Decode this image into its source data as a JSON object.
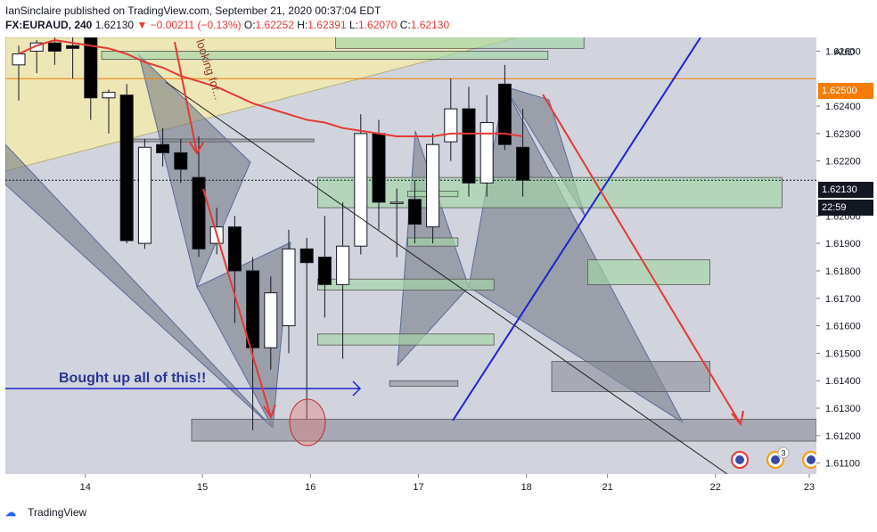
{
  "header": {
    "published": "IanSinclaire published on TradingView.com, September 21, 2020 00:37:04 EDT",
    "symbol": "FX:EURAUD, 240",
    "last": "1.62130",
    "arrow": "▼",
    "change": "−0.00211 (−0.13%)",
    "o_label": "O:",
    "o": "1.62252",
    "h_label": "H:",
    "h": "1.62391",
    "l_label": "L:",
    "l": "1.62070",
    "c_label": "C:",
    "c": "1.62130"
  },
  "axis": {
    "currency": "AUD",
    "price_ticks": [
      "1.62600",
      "1.62400",
      "1.62300",
      "1.62200",
      "1.62000",
      "1.61900",
      "1.61800",
      "1.61700",
      "1.61600",
      "1.61500",
      "1.61400",
      "1.61300",
      "1.61200",
      "1.61100"
    ],
    "date_ticks": [
      "14",
      "15",
      "16",
      "17",
      "18",
      "21",
      "22",
      "23"
    ],
    "marked_price": "1.62500",
    "current_price": "1.62130",
    "countdown": "22:59"
  },
  "annotations": {
    "bought": "Bought up all of this!!",
    "looking": "looking for...",
    "badge_count": "3"
  },
  "footer": {
    "brand": "TradingView"
  },
  "colors": {
    "up_candle": "#ffffff",
    "down_candle": "#000000",
    "ma_line": "#e53935",
    "marked_line": "#f57c00",
    "blue_line": "#1e22d8",
    "zone_green": "#a5d6a7"
  },
  "chart_data": {
    "type": "candlestick",
    "symbol": "FX:EURAUD",
    "interval": "240",
    "ylim": [
      1.6106,
      1.6265
    ],
    "candles": [
      {
        "o": 1.6255,
        "h": 1.6262,
        "l": 1.6242,
        "c": 1.6259
      },
      {
        "o": 1.626,
        "h": 1.6264,
        "l": 1.6252,
        "c": 1.6263
      },
      {
        "o": 1.6263,
        "h": 1.6266,
        "l": 1.6255,
        "c": 1.626
      },
      {
        "o": 1.6262,
        "h": 1.6265,
        "l": 1.625,
        "c": 1.6261
      },
      {
        "o": 1.6265,
        "h": 1.6266,
        "l": 1.6235,
        "c": 1.6243
      },
      {
        "o": 1.6243,
        "h": 1.6246,
        "l": 1.623,
        "c": 1.6245
      },
      {
        "o": 1.6244,
        "h": 1.6248,
        "l": 1.619,
        "c": 1.6191
      },
      {
        "o": 1.619,
        "h": 1.6228,
        "l": 1.6188,
        "c": 1.6225
      },
      {
        "o": 1.6226,
        "h": 1.6232,
        "l": 1.6218,
        "c": 1.6223
      },
      {
        "o": 1.6223,
        "h": 1.6228,
        "l": 1.6212,
        "c": 1.6217
      },
      {
        "o": 1.6214,
        "h": 1.6229,
        "l": 1.6185,
        "c": 1.6188
      },
      {
        "o": 1.619,
        "h": 1.6203,
        "l": 1.6186,
        "c": 1.6196
      },
      {
        "o": 1.6196,
        "h": 1.62,
        "l": 1.6161,
        "c": 1.618
      },
      {
        "o": 1.618,
        "h": 1.6185,
        "l": 1.6122,
        "c": 1.6152
      },
      {
        "o": 1.6152,
        "h": 1.6178,
        "l": 1.6144,
        "c": 1.6172
      },
      {
        "o": 1.616,
        "h": 1.6195,
        "l": 1.615,
        "c": 1.6188
      },
      {
        "o": 1.6188,
        "h": 1.6192,
        "l": 1.6126,
        "c": 1.6183
      },
      {
        "o": 1.6185,
        "h": 1.62,
        "l": 1.6163,
        "c": 1.6175
      },
      {
        "o": 1.6175,
        "h": 1.6205,
        "l": 1.6148,
        "c": 1.6189
      },
      {
        "o": 1.6189,
        "h": 1.6237,
        "l": 1.6186,
        "c": 1.623
      },
      {
        "o": 1.623,
        "h": 1.6235,
        "l": 1.6195,
        "c": 1.6205
      },
      {
        "o": 1.6205,
        "h": 1.621,
        "l": 1.6185,
        "c": 1.6205
      },
      {
        "o": 1.6206,
        "h": 1.6213,
        "l": 1.619,
        "c": 1.6197
      },
      {
        "o": 1.6196,
        "h": 1.623,
        "l": 1.619,
        "c": 1.6226
      },
      {
        "o": 1.6227,
        "h": 1.625,
        "l": 1.622,
        "c": 1.6239
      },
      {
        "o": 1.6239,
        "h": 1.6247,
        "l": 1.6207,
        "c": 1.6212
      },
      {
        "o": 1.6212,
        "h": 1.6244,
        "l": 1.6207,
        "c": 1.6234
      },
      {
        "o": 1.6248,
        "h": 1.6255,
        "l": 1.6224,
        "c": 1.6226
      },
      {
        "o": 1.6225,
        "h": 1.6239,
        "l": 1.6207,
        "c": 1.6213
      }
    ],
    "moving_average": [
      1.6259,
      1.6262,
      1.6264,
      1.6263,
      1.6262,
      1.6261,
      1.6259,
      1.6256,
      1.6254,
      1.6251,
      1.6249,
      1.6247,
      1.6244,
      1.6241,
      1.6239,
      1.6237,
      1.6235,
      1.6234,
      1.6232,
      1.6231,
      1.623,
      1.6229,
      1.6229,
      1.6229,
      1.623,
      1.623,
      1.623,
      1.623,
      1.6229
    ],
    "horizontal_lines": [
      1.625,
      1.6213
    ],
    "zones": [
      {
        "from_bar": 18,
        "to_bar": 31,
        "top": 1.6267,
        "bottom": 1.6261,
        "kind": "green"
      },
      {
        "from_bar": 5,
        "to_bar": 29,
        "top": 1.626,
        "bottom": 1.6257,
        "kind": "green"
      },
      {
        "from_bar": 17,
        "to_bar": 42,
        "top": 1.6214,
        "bottom": 1.6203,
        "kind": "green"
      },
      {
        "from_bar": 32,
        "to_bar": 38,
        "top": 1.6184,
        "bottom": 1.6175,
        "kind": "green"
      },
      {
        "from_bar": 17,
        "to_bar": 26,
        "top": 1.6177,
        "bottom": 1.6173,
        "kind": "green"
      },
      {
        "from_bar": 17,
        "to_bar": 26,
        "top": 1.6157,
        "bottom": 1.6153,
        "kind": "green"
      },
      {
        "from_bar": 22,
        "to_bar": 24,
        "top": 1.6192,
        "bottom": 1.6189,
        "kind": "green"
      },
      {
        "from_bar": 22,
        "to_bar": 24,
        "top": 1.6209,
        "bottom": 1.6207,
        "kind": "green"
      },
      {
        "from_bar": 30,
        "to_bar": 38,
        "top": 1.6147,
        "bottom": 1.6136,
        "kind": "gray"
      },
      {
        "from_bar": 21,
        "to_bar": 24,
        "top": 1.614,
        "bottom": 1.6138,
        "kind": "gray"
      },
      {
        "from_bar": 10,
        "to_bar": 45,
        "top": 1.6126,
        "bottom": 1.6118,
        "kind": "gray"
      },
      {
        "from_bar": 6.5,
        "to_bar": 16,
        "top": 1.6228,
        "bottom": 1.6227,
        "kind": "gray"
      }
    ]
  }
}
